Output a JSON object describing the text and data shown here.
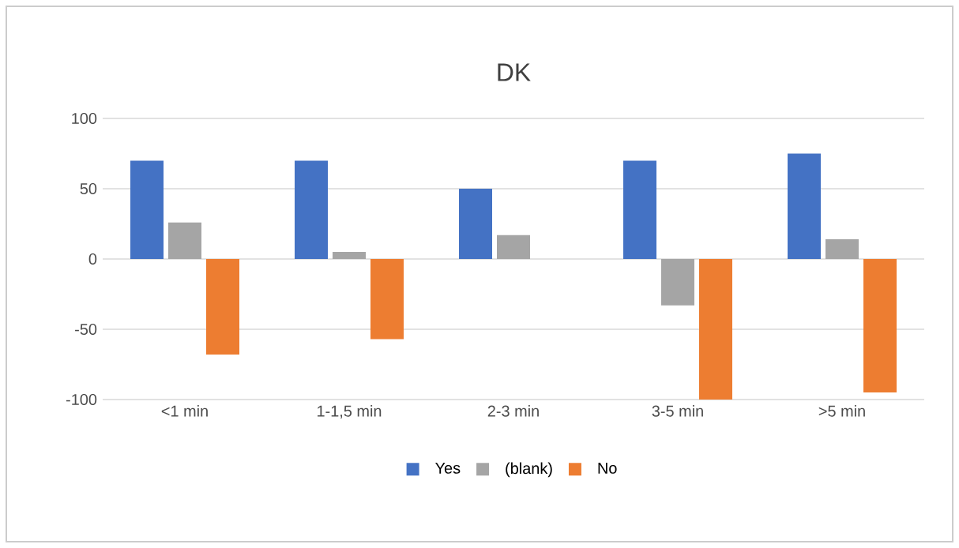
{
  "chart_data": {
    "type": "bar",
    "title": "DK",
    "categories": [
      "<1 min",
      "1-1,5 min",
      "2-3 min",
      "3-5 min",
      ">5 min"
    ],
    "series": [
      {
        "name": "Yes",
        "color": "#4472c4",
        "values": [
          70,
          70,
          50,
          70,
          75
        ]
      },
      {
        "name": "(blank)",
        "color": "#a5a5a5",
        "values": [
          26,
          5,
          17,
          -33,
          14
        ]
      },
      {
        "name": "No",
        "color": "#ed7d31",
        "values": [
          -68,
          -57,
          null,
          -100,
          -95
        ]
      }
    ],
    "ylim": [
      -100,
      100
    ],
    "yticks": [
      -100,
      -50,
      0,
      50,
      100
    ],
    "grid": "y",
    "legend": "bottom"
  }
}
